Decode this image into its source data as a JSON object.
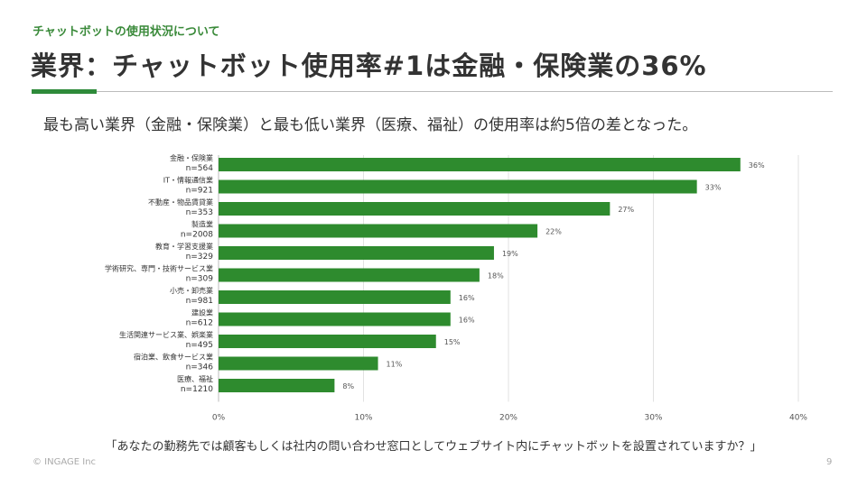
{
  "header": {
    "kicker": "チャットボットの使用状況について",
    "title": "業界：チャットボット使用率#1は金融・保険業の36%"
  },
  "lead": "最も高い業界（金融・保険業）と最も低い業界（医療、福祉）の使用率は約5倍の差となった。",
  "chart_data": {
    "type": "bar",
    "orientation": "horizontal",
    "categories": [
      "金融・保険業",
      "IT・情報通信業",
      "不動産・物品賃貸業",
      "製造業",
      "教育・学習支援業",
      "学術研究、専門・技術サービス業",
      "小売・卸売業",
      "建設業",
      "生活関連サービス業、娯楽業",
      "宿泊業、飲食サービス業",
      "医療、福祉"
    ],
    "sample_sizes": [
      "n=564",
      "n=921",
      "n=353",
      "n=2008",
      "n=329",
      "n=309",
      "n=981",
      "n=612",
      "n=495",
      "n=346",
      "n=1210"
    ],
    "values": [
      36,
      33,
      27,
      22,
      19,
      18,
      16,
      16,
      15,
      11,
      8
    ],
    "data_labels": [
      "36%",
      "33%",
      "27%",
      "22%",
      "19%",
      "18%",
      "16%",
      "16%",
      "15%",
      "11%",
      "8%"
    ],
    "xlim": [
      0,
      40
    ],
    "xticks": [
      "0%",
      "10%",
      "20%",
      "30%",
      "40%"
    ],
    "grid": true,
    "bar_color": "#2e8b2e"
  },
  "question": "「あなたの勤務先では顧客もしくは社内の問い合わせ窓口としてウェブサイト内にチャットボットを設置されていますか？」",
  "footer": {
    "copyright": "© INGAGE Inc",
    "page": "9"
  }
}
